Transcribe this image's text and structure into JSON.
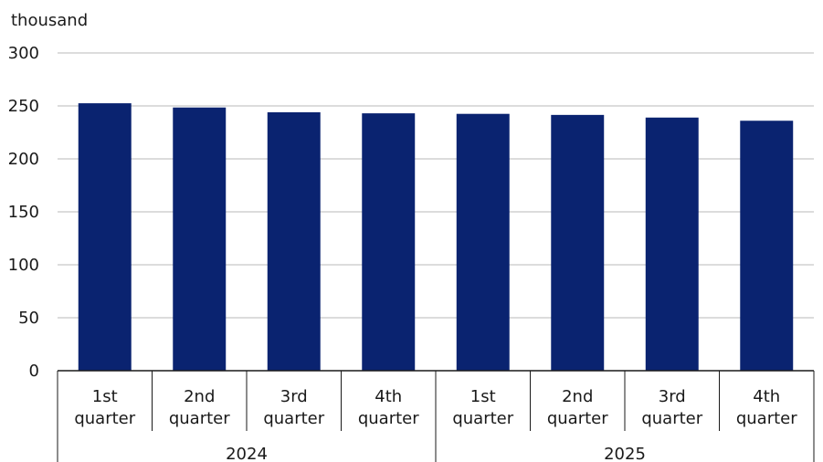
{
  "chart_data": {
    "type": "bar",
    "unit_label": "thousand",
    "ylim": [
      0,
      300
    ],
    "yticks": [
      0,
      50,
      100,
      150,
      200,
      250,
      300
    ],
    "grid": true,
    "bar_color": "#0a2370",
    "groups": [
      {
        "label": "2024",
        "categories": [
          [
            "1st",
            "quarter"
          ],
          [
            "2nd",
            "quarter"
          ],
          [
            "3rd",
            "quarter"
          ],
          [
            "4th",
            "quarter"
          ]
        ]
      },
      {
        "label": "2025",
        "categories": [
          [
            "1st",
            "quarter"
          ],
          [
            "2nd",
            "quarter"
          ],
          [
            "3rd",
            "quarter"
          ],
          [
            "4th",
            "quarter"
          ]
        ]
      }
    ],
    "values": [
      252.5,
      248.5,
      244.0,
      243.0,
      242.5,
      241.5,
      239.0,
      236.0
    ]
  }
}
